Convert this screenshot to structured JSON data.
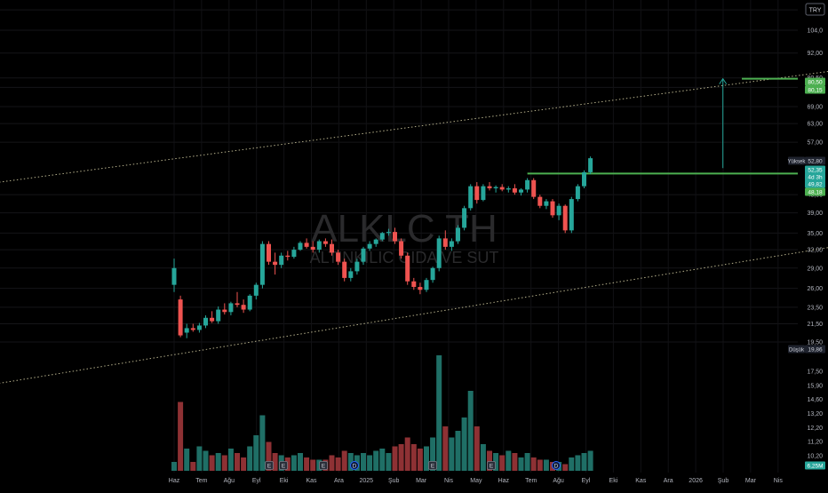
{
  "currency_badge": "TRY",
  "watermark": {
    "symbol": "ALKLC TH",
    "company": "ALTINKILIC GIDA VE SUT"
  },
  "colors": {
    "up": "#26a69a",
    "down": "#ef5350",
    "vol_up": "#1f6f66",
    "vol_down": "#8e3134",
    "level": "#4caf50",
    "channel": "#c8c29a",
    "axis_text": "#b2b5be"
  },
  "chart_data": {
    "type": "candlestick",
    "scale": "log",
    "ylim": [
      18.5,
      120
    ],
    "price_ticks": [
      "116,0",
      "104,0",
      "92,00",
      "80,50",
      "76,50",
      "69,00",
      "63,00",
      "57,00",
      "43,00",
      "39,00",
      "35,00",
      "32,00",
      "29,00",
      "26,00",
      "23,50",
      "21,50",
      "19,50",
      "17,50",
      "15,90",
      "14,60",
      "13,20",
      "12,20",
      "11,20",
      "10,20"
    ],
    "time_labels": [
      {
        "label": "Haz",
        "date": "2024-06"
      },
      {
        "label": "Tem",
        "date": "2024-07"
      },
      {
        "label": "Ağu",
        "date": "2024-08"
      },
      {
        "label": "Eyl",
        "date": "2024-09"
      },
      {
        "label": "Eki",
        "date": "2024-10"
      },
      {
        "label": "Kas",
        "date": "2024-11"
      },
      {
        "label": "Ara",
        "date": "2024-12"
      },
      {
        "label": "2025",
        "date": "2025-01"
      },
      {
        "label": "Şub",
        "date": "2025-02"
      },
      {
        "label": "Mar",
        "date": "2025-03"
      },
      {
        "label": "Nis",
        "date": "2025-04"
      },
      {
        "label": "May",
        "date": "2025-05"
      },
      {
        "label": "Haz",
        "date": "2025-06"
      },
      {
        "label": "Tem",
        "date": "2025-07"
      },
      {
        "label": "Ağu",
        "date": "2025-08"
      },
      {
        "label": "Eyl",
        "date": "2025-09"
      },
      {
        "label": "Eki",
        "date": "2025-10"
      },
      {
        "label": "Kas",
        "date": "2025-11"
      },
      {
        "label": "Ara",
        "date": "2025-12"
      },
      {
        "label": "2026",
        "date": "2026-01"
      },
      {
        "label": "Şub",
        "date": "2026-02"
      },
      {
        "label": "Mar",
        "date": "2026-03"
      },
      {
        "label": "Nis",
        "date": "2026-04"
      }
    ],
    "candles": [
      {
        "o": 26.5,
        "h": 30.5,
        "l": 25.5,
        "c": 29.0,
        "v": 0.4
      },
      {
        "o": 24.5,
        "h": 25.0,
        "l": 20.0,
        "c": 20.2,
        "v": 3.1
      },
      {
        "o": 20.5,
        "h": 21.5,
        "l": 19.9,
        "c": 21.0,
        "v": 1.0
      },
      {
        "o": 21.0,
        "h": 21.5,
        "l": 20.6,
        "c": 20.8,
        "v": 0.4
      },
      {
        "o": 20.8,
        "h": 21.6,
        "l": 20.5,
        "c": 21.3,
        "v": 1.1
      },
      {
        "o": 21.3,
        "h": 22.5,
        "l": 21.0,
        "c": 22.2,
        "v": 0.9
      },
      {
        "o": 22.2,
        "h": 23.0,
        "l": 21.6,
        "c": 21.8,
        "v": 0.7
      },
      {
        "o": 21.8,
        "h": 23.6,
        "l": 21.5,
        "c": 23.2,
        "v": 0.8
      },
      {
        "o": 23.2,
        "h": 24.0,
        "l": 22.6,
        "c": 22.9,
        "v": 0.7
      },
      {
        "o": 22.9,
        "h": 24.2,
        "l": 22.5,
        "c": 24.0,
        "v": 1.0
      },
      {
        "o": 24.0,
        "h": 25.5,
        "l": 23.5,
        "c": 23.8,
        "v": 0.8
      },
      {
        "o": 23.8,
        "h": 24.5,
        "l": 22.8,
        "c": 23.2,
        "v": 0.6
      },
      {
        "o": 23.2,
        "h": 25.2,
        "l": 23.0,
        "c": 25.0,
        "v": 1.1
      },
      {
        "o": 25.0,
        "h": 26.8,
        "l": 24.5,
        "c": 26.5,
        "v": 1.6
      },
      {
        "o": 26.5,
        "h": 33.5,
        "l": 26.0,
        "c": 33.0,
        "v": 2.5
      },
      {
        "o": 33.0,
        "h": 33.5,
        "l": 29.5,
        "c": 30.0,
        "v": 1.3
      },
      {
        "o": 30.0,
        "h": 31.5,
        "l": 28.0,
        "c": 29.5,
        "v": 0.8
      },
      {
        "o": 29.5,
        "h": 31.5,
        "l": 29.0,
        "c": 31.0,
        "v": 0.7
      },
      {
        "o": 31.0,
        "h": 31.8,
        "l": 30.2,
        "c": 30.8,
        "v": 0.6
      },
      {
        "o": 30.8,
        "h": 32.5,
        "l": 30.5,
        "c": 32.0,
        "v": 0.7
      },
      {
        "o": 32.0,
        "h": 33.5,
        "l": 31.8,
        "c": 33.2,
        "v": 0.8
      },
      {
        "o": 33.2,
        "h": 34.0,
        "l": 32.2,
        "c": 32.5,
        "v": 0.6
      },
      {
        "o": 32.5,
        "h": 33.5,
        "l": 31.5,
        "c": 32.0,
        "v": 0.5
      },
      {
        "o": 32.0,
        "h": 33.8,
        "l": 31.5,
        "c": 33.5,
        "v": 0.5
      },
      {
        "o": 33.5,
        "h": 34.0,
        "l": 32.5,
        "c": 33.0,
        "v": 0.5
      },
      {
        "o": 33.0,
        "h": 33.8,
        "l": 31.0,
        "c": 31.5,
        "v": 0.7
      },
      {
        "o": 31.5,
        "h": 32.0,
        "l": 29.5,
        "c": 30.0,
        "v": 0.6
      },
      {
        "o": 30.0,
        "h": 30.5,
        "l": 27.0,
        "c": 27.5,
        "v": 0.9
      },
      {
        "o": 27.5,
        "h": 29.0,
        "l": 27.0,
        "c": 28.5,
        "v": 0.8
      },
      {
        "o": 28.5,
        "h": 30.5,
        "l": 28.0,
        "c": 30.0,
        "v": 0.7
      },
      {
        "o": 30.0,
        "h": 32.5,
        "l": 29.5,
        "c": 32.2,
        "v": 0.8
      },
      {
        "o": 32.2,
        "h": 33.5,
        "l": 31.8,
        "c": 33.0,
        "v": 0.7
      },
      {
        "o": 33.0,
        "h": 34.0,
        "l": 32.5,
        "c": 33.8,
        "v": 0.9
      },
      {
        "o": 33.8,
        "h": 35.2,
        "l": 33.5,
        "c": 35.0,
        "v": 1.0
      },
      {
        "o": 35.0,
        "h": 35.8,
        "l": 34.5,
        "c": 35.2,
        "v": 0.8
      },
      {
        "o": 35.2,
        "h": 36.0,
        "l": 33.0,
        "c": 33.5,
        "v": 1.1
      },
      {
        "o": 33.5,
        "h": 34.0,
        "l": 30.5,
        "c": 31.0,
        "v": 1.2
      },
      {
        "o": 31.0,
        "h": 31.5,
        "l": 26.5,
        "c": 27.0,
        "v": 1.5
      },
      {
        "o": 27.0,
        "h": 27.5,
        "l": 25.8,
        "c": 26.2,
        "v": 1.2
      },
      {
        "o": 26.2,
        "h": 26.8,
        "l": 25.2,
        "c": 25.8,
        "v": 1.0
      },
      {
        "o": 25.8,
        "h": 27.5,
        "l": 25.5,
        "c": 27.2,
        "v": 1.1
      },
      {
        "o": 27.2,
        "h": 29.2,
        "l": 26.8,
        "c": 29.0,
        "v": 1.5
      },
      {
        "o": 29.0,
        "h": 34.5,
        "l": 28.5,
        "c": 34.0,
        "v": 5.2
      },
      {
        "o": 34.0,
        "h": 35.5,
        "l": 32.0,
        "c": 32.5,
        "v": 2.0
      },
      {
        "o": 32.5,
        "h": 34.0,
        "l": 31.8,
        "c": 33.5,
        "v": 1.5
      },
      {
        "o": 33.5,
        "h": 36.5,
        "l": 33.0,
        "c": 36.0,
        "v": 1.8
      },
      {
        "o": 36.0,
        "h": 40.5,
        "l": 35.5,
        "c": 40.0,
        "v": 2.4
      },
      {
        "o": 40.0,
        "h": 45.5,
        "l": 39.5,
        "c": 45.0,
        "v": 3.6
      },
      {
        "o": 45.0,
        "h": 46.0,
        "l": 41.0,
        "c": 41.8,
        "v": 2.0
      },
      {
        "o": 41.8,
        "h": 45.5,
        "l": 41.5,
        "c": 45.0,
        "v": 1.2
      },
      {
        "o": 45.0,
        "h": 46.0,
        "l": 44.0,
        "c": 44.5,
        "v": 0.9
      },
      {
        "o": 44.5,
        "h": 45.2,
        "l": 43.5,
        "c": 44.8,
        "v": 0.8
      },
      {
        "o": 44.8,
        "h": 45.5,
        "l": 43.8,
        "c": 44.2,
        "v": 0.7
      },
      {
        "o": 44.2,
        "h": 45.0,
        "l": 43.5,
        "c": 44.5,
        "v": 0.9
      },
      {
        "o": 44.5,
        "h": 45.5,
        "l": 43.0,
        "c": 43.5,
        "v": 0.8
      },
      {
        "o": 43.5,
        "h": 44.5,
        "l": 42.8,
        "c": 44.2,
        "v": 0.6
      },
      {
        "o": 44.2,
        "h": 47.0,
        "l": 43.5,
        "c": 46.5,
        "v": 0.8
      },
      {
        "o": 46.5,
        "h": 47.0,
        "l": 42.0,
        "c": 42.5,
        "v": 0.6
      },
      {
        "o": 42.5,
        "h": 43.0,
        "l": 40.0,
        "c": 40.5,
        "v": 0.5
      },
      {
        "o": 40.5,
        "h": 42.0,
        "l": 39.8,
        "c": 41.5,
        "v": 0.5
      },
      {
        "o": 41.5,
        "h": 42.0,
        "l": 38.0,
        "c": 38.5,
        "v": 0.4
      },
      {
        "o": 38.5,
        "h": 41.0,
        "l": 37.5,
        "c": 40.5,
        "v": 0.4
      },
      {
        "o": 40.5,
        "h": 40.8,
        "l": 35.0,
        "c": 35.5,
        "v": 0.3
      },
      {
        "o": 35.5,
        "h": 42.5,
        "l": 35.0,
        "c": 42.0,
        "v": 0.6
      },
      {
        "o": 42.0,
        "h": 45.5,
        "l": 41.5,
        "c": 45.0,
        "v": 0.7
      },
      {
        "o": 45.0,
        "h": 49.0,
        "l": 44.5,
        "c": 48.5,
        "v": 0.8
      },
      {
        "o": 48.5,
        "h": 52.8,
        "l": 48.0,
        "c": 52.3,
        "v": 0.9
      }
    ],
    "event_markers": [
      "E",
      "E",
      "E",
      "D",
      "E",
      "E",
      "D"
    ],
    "channel_top": {
      "from": {
        "index": -35,
        "price": 44.5
      },
      "to": {
        "index": 135,
        "price": 96.0
      }
    },
    "channel_bottom": {
      "from": {
        "index": -35,
        "price": 15.0
      },
      "to": {
        "index": 135,
        "price": 38.5
      }
    },
    "support_level": {
      "price": 48.18,
      "from_index": 56,
      "to_index": 135
    },
    "target_level": {
      "price": 80.15,
      "from_index": 90,
      "to_index": 135
    },
    "projection_arrow": {
      "index": 87,
      "from_price": 49.6,
      "to_price": 80.15
    },
    "axis_badges": [
      {
        "value": "80,50",
        "kind": "level"
      },
      {
        "value": "80,15",
        "kind": "level"
      },
      {
        "value": "52,80",
        "kind": "dark",
        "label": "Yüksek"
      },
      {
        "value": "52,35",
        "kind": "up"
      },
      {
        "value": "4d 3h",
        "kind": "up"
      },
      {
        "value": "49,82",
        "kind": "up"
      },
      {
        "value": "48,18",
        "kind": "level"
      },
      {
        "value": "19,86",
        "kind": "dark",
        "label": "Düşük"
      },
      {
        "value": "6,25M",
        "kind": "up"
      }
    ]
  }
}
